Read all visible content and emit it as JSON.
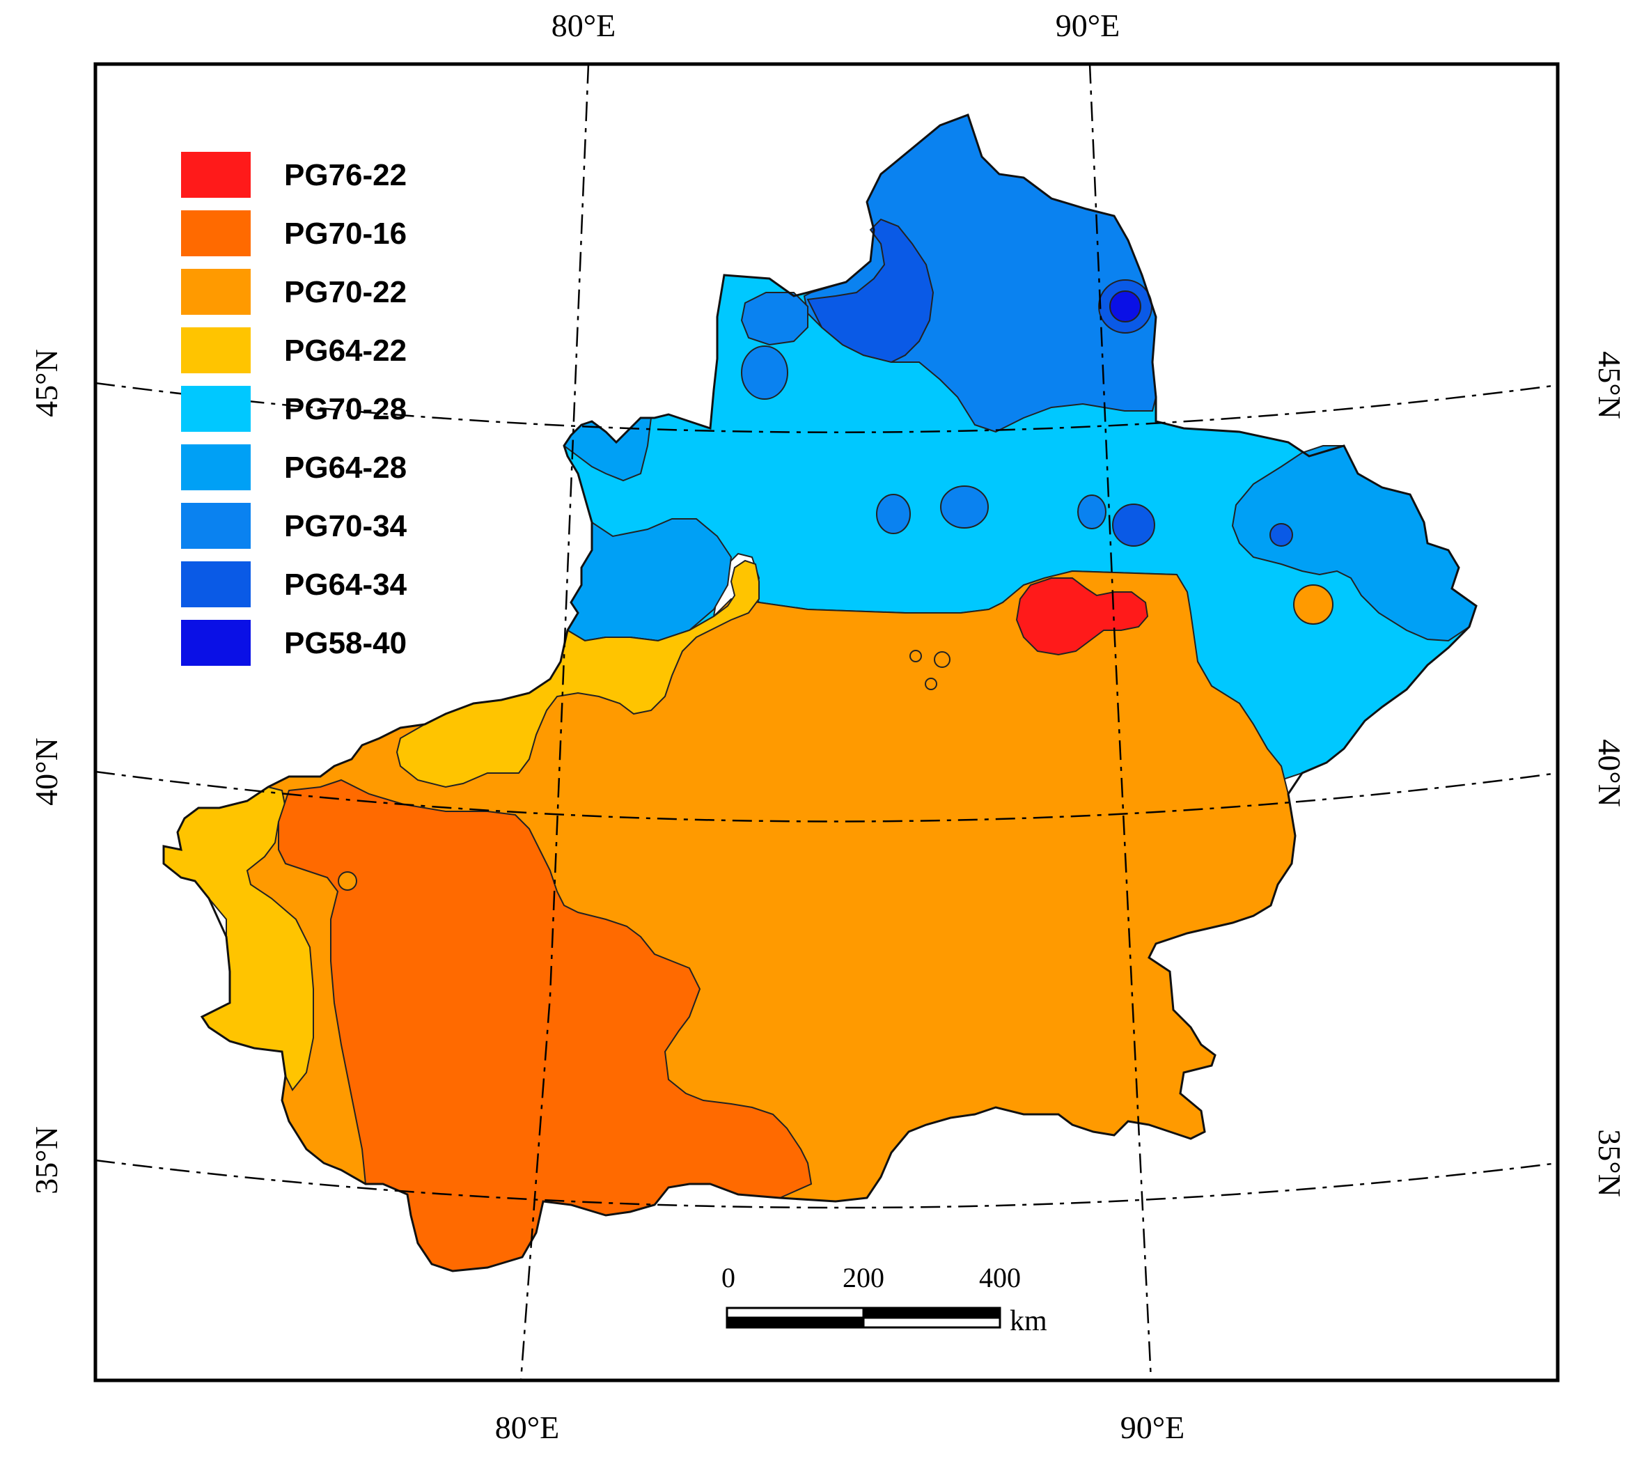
{
  "map": {
    "colors": {
      "ocean": "#ffffff",
      "frame": "#000000",
      "graticule": "#000000",
      "PG76-22": "#ff1a1a",
      "PG70-16": "#ff6a00",
      "PG70-22": "#ff9a00",
      "PG64-22": "#ffc400",
      "PG70-28": "#00c8ff",
      "PG64-28": "#00a0f5",
      "PG70-34": "#0a82f0",
      "PG64-34": "#0a5ae6",
      "PG58-40": "#0a10e6"
    },
    "axis_labels": {
      "top": [
        "80°E",
        "90°E"
      ],
      "bottom": [
        "80°E",
        "90°E"
      ],
      "left": [
        "45°N",
        "40°N",
        "35°N"
      ],
      "right": [
        "45°N",
        "40°N",
        "35°N"
      ]
    },
    "legend": [
      {
        "label": "PG76-22",
        "color": "#ff1a1a"
      },
      {
        "label": "PG70-16",
        "color": "#ff6a00"
      },
      {
        "label": "PG70-22",
        "color": "#ff9a00"
      },
      {
        "label": "PG64-22",
        "color": "#ffc400"
      },
      {
        "label": "PG70-28",
        "color": "#00c8ff"
      },
      {
        "label": "PG64-28",
        "color": "#00a0f5"
      },
      {
        "label": "PG70-34",
        "color": "#0a82f0"
      },
      {
        "label": "PG64-34",
        "color": "#0a5ae6"
      },
      {
        "label": "PG58-40",
        "color": "#0a10e6"
      }
    ],
    "scale_bar": {
      "ticks": [
        "0",
        "200",
        "400"
      ],
      "unit": "km"
    }
  }
}
